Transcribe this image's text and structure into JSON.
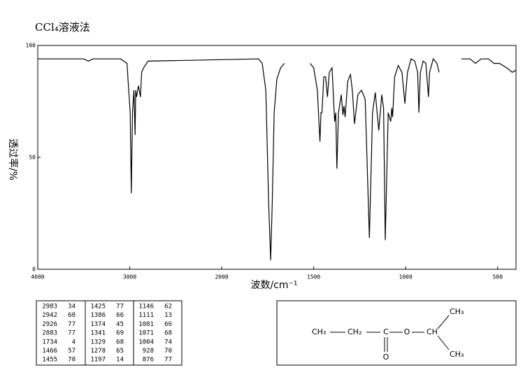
{
  "chart_data": {
    "type": "line",
    "title": "CCl₄溶液法",
    "x_label": "波数/cm⁻¹",
    "y_label": "透过率/%",
    "xlim": [
      4000,
      400
    ],
    "xticks": [
      4000,
      3000,
      2000,
      1500,
      1000,
      500
    ],
    "x_scale_break": 2000,
    "x_scale_ratio": 2,
    "ylim": [
      0,
      100
    ],
    "yticks": [
      0,
      50,
      100
    ],
    "color": "#000000",
    "x": [
      4000,
      3500,
      3450,
      3400,
      3100,
      3030,
      2995,
      2983,
      2970,
      2955,
      2942,
      2935,
      2926,
      2905,
      2883,
      2870,
      2850,
      2800,
      1800,
      1780,
      1760,
      1745,
      1734,
      1725,
      1715,
      1700,
      1680,
      1659,
      1600,
      1519,
      1500,
      1480,
      1466,
      1460,
      1455,
      1445,
      1435,
      1425,
      1415,
      1400,
      1386,
      1380,
      1374,
      1365,
      1350,
      1341,
      1335,
      1329,
      1315,
      1300,
      1290,
      1278,
      1260,
      1240,
      1220,
      1197,
      1180,
      1165,
      1146,
      1130,
      1120,
      1111,
      1095,
      1081,
      1075,
      1071,
      1060,
      1040,
      1020,
      1004,
      990,
      970,
      950,
      935,
      928,
      920,
      905,
      890,
      876,
      870,
      850,
      830,
      818,
      750,
      697,
      650,
      620,
      590,
      550,
      520,
      490,
      450,
      420,
      400
    ],
    "values": [
      94,
      94,
      93,
      94,
      94,
      92,
      70,
      34,
      70,
      80,
      60,
      80,
      77,
      82,
      77,
      88,
      90,
      93,
      94,
      92,
      80,
      30,
      4,
      30,
      70,
      85,
      90,
      92,
      null,
      92,
      90,
      80,
      57,
      70,
      70,
      86,
      86,
      77,
      88,
      90,
      66,
      70,
      45,
      70,
      78,
      69,
      73,
      68,
      84,
      87,
      80,
      65,
      78,
      80,
      76,
      14,
      70,
      79,
      62,
      78,
      72,
      13,
      70,
      66,
      72,
      68,
      86,
      91,
      88,
      74,
      88,
      94,
      93,
      88,
      70,
      88,
      93,
      92,
      77,
      88,
      94,
      92,
      88,
      null,
      94,
      94,
      92,
      94,
      94,
      92,
      92,
      90,
      88,
      89
    ]
  },
  "table": {
    "rows": [
      [
        2983,
        34,
        1425,
        77,
        1146,
        62
      ],
      [
        2942,
        60,
        1386,
        66,
        1111,
        13
      ],
      [
        2926,
        77,
        1374,
        45,
        1081,
        66
      ],
      [
        2883,
        77,
        1341,
        69,
        1071,
        68
      ],
      [
        1734,
        4,
        1329,
        68,
        1004,
        74
      ],
      [
        1466,
        57,
        1278,
        65,
        928,
        70
      ],
      [
        1455,
        70,
        1197,
        14,
        876,
        77
      ]
    ]
  },
  "structure": {
    "labels": [
      "CH₃",
      "CH₂",
      "C",
      "O",
      "CH",
      "CH₃",
      "CH₃",
      "O"
    ]
  }
}
